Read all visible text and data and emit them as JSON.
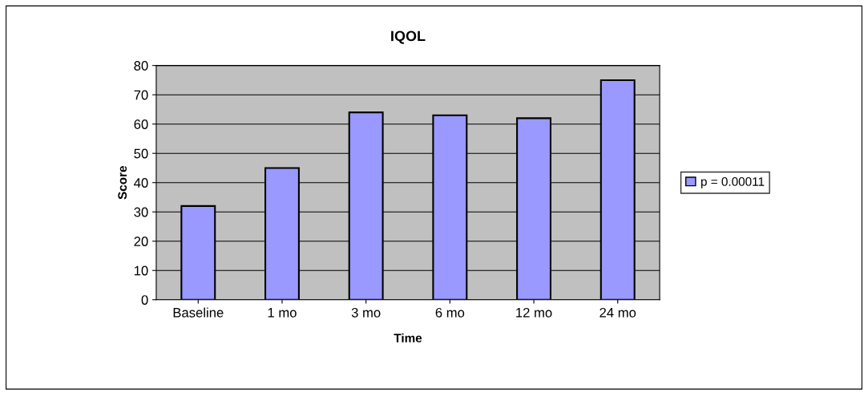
{
  "chart_data": {
    "type": "bar",
    "title": "IQOL",
    "xlabel": "Time",
    "ylabel": "Score",
    "categories": [
      "Baseline",
      "1 mo",
      "3 mo",
      "6 mo",
      "12 mo",
      "24 mo"
    ],
    "series": [
      {
        "name": "p = 0.00011",
        "color": "#9999ff",
        "values": [
          32,
          45,
          64,
          63,
          62,
          75
        ]
      }
    ],
    "ylim": [
      0,
      80
    ],
    "yticks": [
      0,
      10,
      20,
      30,
      40,
      50,
      60,
      70,
      80
    ],
    "grid": "y",
    "legend": "right"
  }
}
